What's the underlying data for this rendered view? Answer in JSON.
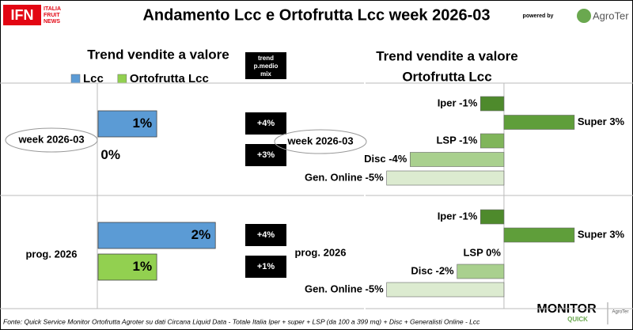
{
  "header": {
    "logo": "IFN",
    "logo_text": [
      "ITALIA",
      "FRUIT",
      "NEWS"
    ],
    "title": "Andamento Lcc e Ortofrutta Lcc week 2026-03",
    "powered_by": "powered by",
    "brand": "AgroTer"
  },
  "chart_data": [
    {
      "type": "hbar",
      "title": "Trend vendite a valore",
      "categories": [
        "week 2026-03",
        "prog. 2026"
      ],
      "series": [
        {
          "name": "Lcc",
          "color": "#5b9bd5",
          "values": [
            1,
            2
          ],
          "value_labels": [
            "1%",
            "2%"
          ]
        },
        {
          "name": "Ortofrutta Lcc",
          "color": "#92d050",
          "values": [
            0,
            1
          ],
          "value_labels": [
            "0%",
            "1%"
          ]
        }
      ],
      "xlim": [
        0,
        2.78
      ],
      "legend": "top",
      "trend_title": [
        "trend",
        "p.medio",
        "mix"
      ],
      "trend": {
        "values": [
          4,
          3,
          4,
          1
        ],
        "value_labels": [
          "+4%",
          "+3%",
          "+4%",
          "+1%"
        ]
      }
    },
    {
      "type": "diverging",
      "title": [
        "Trend vendite a valore",
        "Ortofrutta Lcc"
      ],
      "categories": [
        "week 2026-03",
        "prog. 2026"
      ],
      "colors": [
        "#4e8a2c",
        "#5f9e3a",
        "#80b55a",
        "#a9d08e",
        "#dcebd0"
      ],
      "groups": [
        {
          "values": [
            -1,
            3,
            -1,
            -4,
            -5
          ],
          "value_labels": [
            "Iper -1%",
            "Super 3%",
            "LSP -1%",
            "Disc -4%",
            "Gen. Online -5%"
          ]
        },
        {
          "values": [
            -1,
            3,
            0,
            -2,
            -5
          ],
          "value_labels": [
            "Iper -1%",
            "Super 3%",
            "LSP 0%",
            "Disc -2%",
            "Gen. Online -5%"
          ]
        }
      ],
      "xlim": [
        -5.9,
        5.5
      ]
    }
  ],
  "footer": {
    "source": "Fonte: Quick Service Monitor Ortofrutta Agroter su dati Circana Liquid Data - Totale Italia Iper + super + LSP (da 100 a 399 mq) + Disc + Generalisti Online - Lcc",
    "logo": [
      "MONITOR",
      "QUICK"
    ]
  }
}
